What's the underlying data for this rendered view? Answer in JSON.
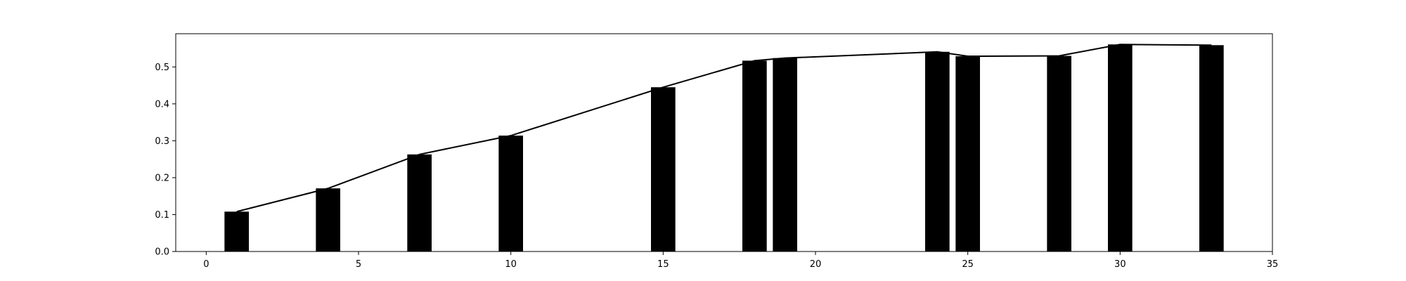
{
  "chart_data": {
    "type": "bar",
    "title": "",
    "xlabel": "",
    "ylabel": "",
    "xlim": [
      -1,
      35
    ],
    "ylim": [
      0,
      0.59
    ],
    "grid": false,
    "bar_width": 0.8,
    "x_ticks": [
      0,
      5,
      10,
      15,
      20,
      25,
      30,
      35
    ],
    "y_ticks": [
      0.0,
      0.1,
      0.2,
      0.3,
      0.4,
      0.5
    ],
    "x_tick_labels": [
      "0",
      "5",
      "10",
      "15",
      "20",
      "25",
      "30",
      "35"
    ],
    "y_tick_labels": [
      "0.0",
      "0.1",
      "0.2",
      "0.3",
      "0.4",
      "0.5"
    ],
    "bar_color": "#000000",
    "line_color": "#000000",
    "x": [
      1,
      4,
      7,
      10,
      15,
      18,
      19,
      24,
      25,
      28,
      30,
      33
    ],
    "values": [
      0.108,
      0.171,
      0.263,
      0.314,
      0.445,
      0.517,
      0.524,
      0.541,
      0.529,
      0.53,
      0.561,
      0.559
    ],
    "line": {
      "x": [
        1,
        4,
        7,
        10,
        15,
        18,
        19,
        24,
        25,
        28,
        30,
        33
      ],
      "y": [
        0.108,
        0.171,
        0.263,
        0.314,
        0.445,
        0.517,
        0.524,
        0.541,
        0.529,
        0.53,
        0.561,
        0.559
      ]
    }
  }
}
